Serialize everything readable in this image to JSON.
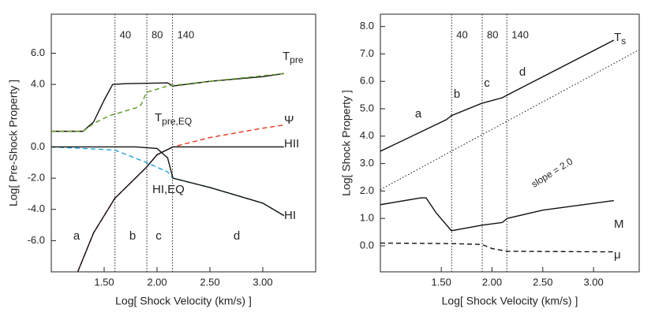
{
  "chart_data": [
    {
      "type": "line",
      "ylabel": "Log[ Pre-Shock Property ]",
      "xlabel": "Log[ Shock Velocity (km/s) ]",
      "xlim": [
        1.0,
        3.5
      ],
      "xticks": [
        {
          "value": 1.5,
          "label": "1.50"
        },
        {
          "value": 2.0,
          "label": "2.00"
        },
        {
          "value": 2.5,
          "label": "2.50"
        },
        {
          "value": 3.0,
          "label": "3.00"
        }
      ],
      "ylim": [
        -8,
        8.5
      ],
      "yticks": [
        {
          "value": 6,
          "label": "6.0"
        },
        {
          "value": 4,
          "label": "4.0"
        },
        {
          "value": 0,
          "label": "0.0"
        },
        {
          "value": -2,
          "label": "-2.0"
        },
        {
          "value": -4,
          "label": "-4.0"
        },
        {
          "value": -6,
          "label": "-6.0"
        }
      ],
      "markers": [
        {
          "value": 1.602,
          "label": "40"
        },
        {
          "value": 1.903,
          "label": "80"
        },
        {
          "value": 2.146,
          "label": "140"
        }
      ],
      "regions": [
        "a",
        "b",
        "c",
        "d"
      ],
      "series": [
        {
          "name": "T",
          "sub": "pre",
          "color": "#111111",
          "dash": "solid",
          "x": [
            1.0,
            1.3,
            1.4,
            1.5,
            1.58,
            1.7,
            2.1,
            2.15,
            2.5,
            3.0,
            3.2
          ],
          "values": [
            1.0,
            1.0,
            1.6,
            3.0,
            4.0,
            4.05,
            4.1,
            3.9,
            4.2,
            4.5,
            4.7
          ]
        },
        {
          "name": "T",
          "sub": "pre,EQ",
          "color": "#5a9a1e",
          "dash": "dashed",
          "x": [
            1.0,
            1.3,
            1.4,
            1.55,
            1.8,
            1.85,
            1.9,
            2.1,
            2.5,
            3.2
          ],
          "values": [
            1.0,
            1.0,
            1.5,
            2.0,
            2.5,
            2.7,
            3.5,
            3.9,
            4.2,
            4.7
          ]
        },
        {
          "name": "Ψ",
          "color": "#e8341c",
          "dash": "dashed",
          "x": [
            1.25,
            1.4,
            1.6,
            1.9,
            2.0,
            2.15,
            2.5,
            3.0,
            3.2
          ],
          "values": [
            -8.0,
            -5.5,
            -3.3,
            -1.3,
            -0.5,
            0.0,
            0.6,
            1.2,
            1.4
          ]
        },
        {
          "name": "HII",
          "color": "#111111",
          "dash": "solid",
          "x": [
            1.25,
            1.4,
            1.6,
            1.9,
            2.0,
            2.15,
            2.5,
            3.2
          ],
          "values": [
            -8.0,
            -5.5,
            -3.3,
            -1.3,
            -0.5,
            0.0,
            0.0,
            0.0
          ]
        },
        {
          "name": "HI,EQ",
          "color": "#1aa0e0",
          "dash": "dashed",
          "x": [
            1.0,
            1.6,
            1.9,
            2.1,
            2.15,
            2.5,
            3.0,
            3.2
          ],
          "values": [
            0.0,
            -0.2,
            -1.0,
            -1.6,
            -2.0,
            -2.6,
            -3.6,
            -4.4
          ]
        },
        {
          "name": "HI",
          "color": "#111111",
          "dash": "solid",
          "x": [
            1.0,
            1.8,
            2.0,
            2.1,
            2.15,
            2.5,
            3.0,
            3.2
          ],
          "values": [
            0.0,
            0.0,
            -0.1,
            -0.7,
            -2.0,
            -2.6,
            -3.6,
            -4.4
          ]
        }
      ]
    },
    {
      "type": "line",
      "ylabel": "Log[ Shock Property ]",
      "xlabel": "Log[ Shock Velocity (km/s) ]",
      "xlim": [
        0.9,
        3.45
      ],
      "xticks": [
        {
          "value": 1.5,
          "label": "1.50"
        },
        {
          "value": 2.0,
          "label": "2.00"
        },
        {
          "value": 2.5,
          "label": "2.50"
        },
        {
          "value": 3.0,
          "label": "3.00"
        }
      ],
      "ylim": [
        -0.95,
        8.45
      ],
      "yticks": [
        {
          "value": 0,
          "label": "0.0"
        },
        {
          "value": 1,
          "label": "1.0"
        },
        {
          "value": 2,
          "label": "2.0"
        },
        {
          "value": 3,
          "label": "3.0"
        },
        {
          "value": 4,
          "label": "4.0"
        },
        {
          "value": 5,
          "label": "5.0"
        },
        {
          "value": 6,
          "label": "6.0"
        },
        {
          "value": 7,
          "label": "7.0"
        },
        {
          "value": 8,
          "label": "8.0"
        }
      ],
      "markers": [
        {
          "value": 1.602,
          "label": "40"
        },
        {
          "value": 1.903,
          "label": "80"
        },
        {
          "value": 2.146,
          "label": "140"
        }
      ],
      "regions": [
        "a",
        "b",
        "c",
        "d"
      ],
      "series": [
        {
          "name": "T",
          "sub": "s",
          "color": "#111111",
          "dash": "solid",
          "x": [
            0.9,
            1.55,
            1.6,
            1.9,
            2.1,
            2.15,
            3.2
          ],
          "values": [
            3.45,
            4.6,
            4.75,
            5.2,
            5.4,
            5.5,
            7.5
          ]
        },
        {
          "name": "slope = 2.0",
          "color": "#111111",
          "dash": "dotted",
          "x": [
            0.9,
            3.45
          ],
          "values": [
            2.05,
            7.15
          ]
        },
        {
          "name": "M",
          "color": "#111111",
          "dash": "solid",
          "x": [
            0.9,
            1.3,
            1.35,
            1.45,
            1.6,
            1.9,
            2.1,
            2.15,
            2.5,
            3.2
          ],
          "values": [
            1.5,
            1.75,
            1.75,
            1.2,
            0.55,
            0.75,
            0.85,
            1.0,
            1.3,
            1.65
          ]
        },
        {
          "name": "μ",
          "color": "#111111",
          "dash": "dashed",
          "x": [
            0.9,
            1.6,
            1.9,
            2.0,
            2.15,
            3.2
          ],
          "values": [
            0.1,
            0.08,
            0.05,
            -0.1,
            -0.2,
            -0.22
          ]
        }
      ]
    }
  ]
}
